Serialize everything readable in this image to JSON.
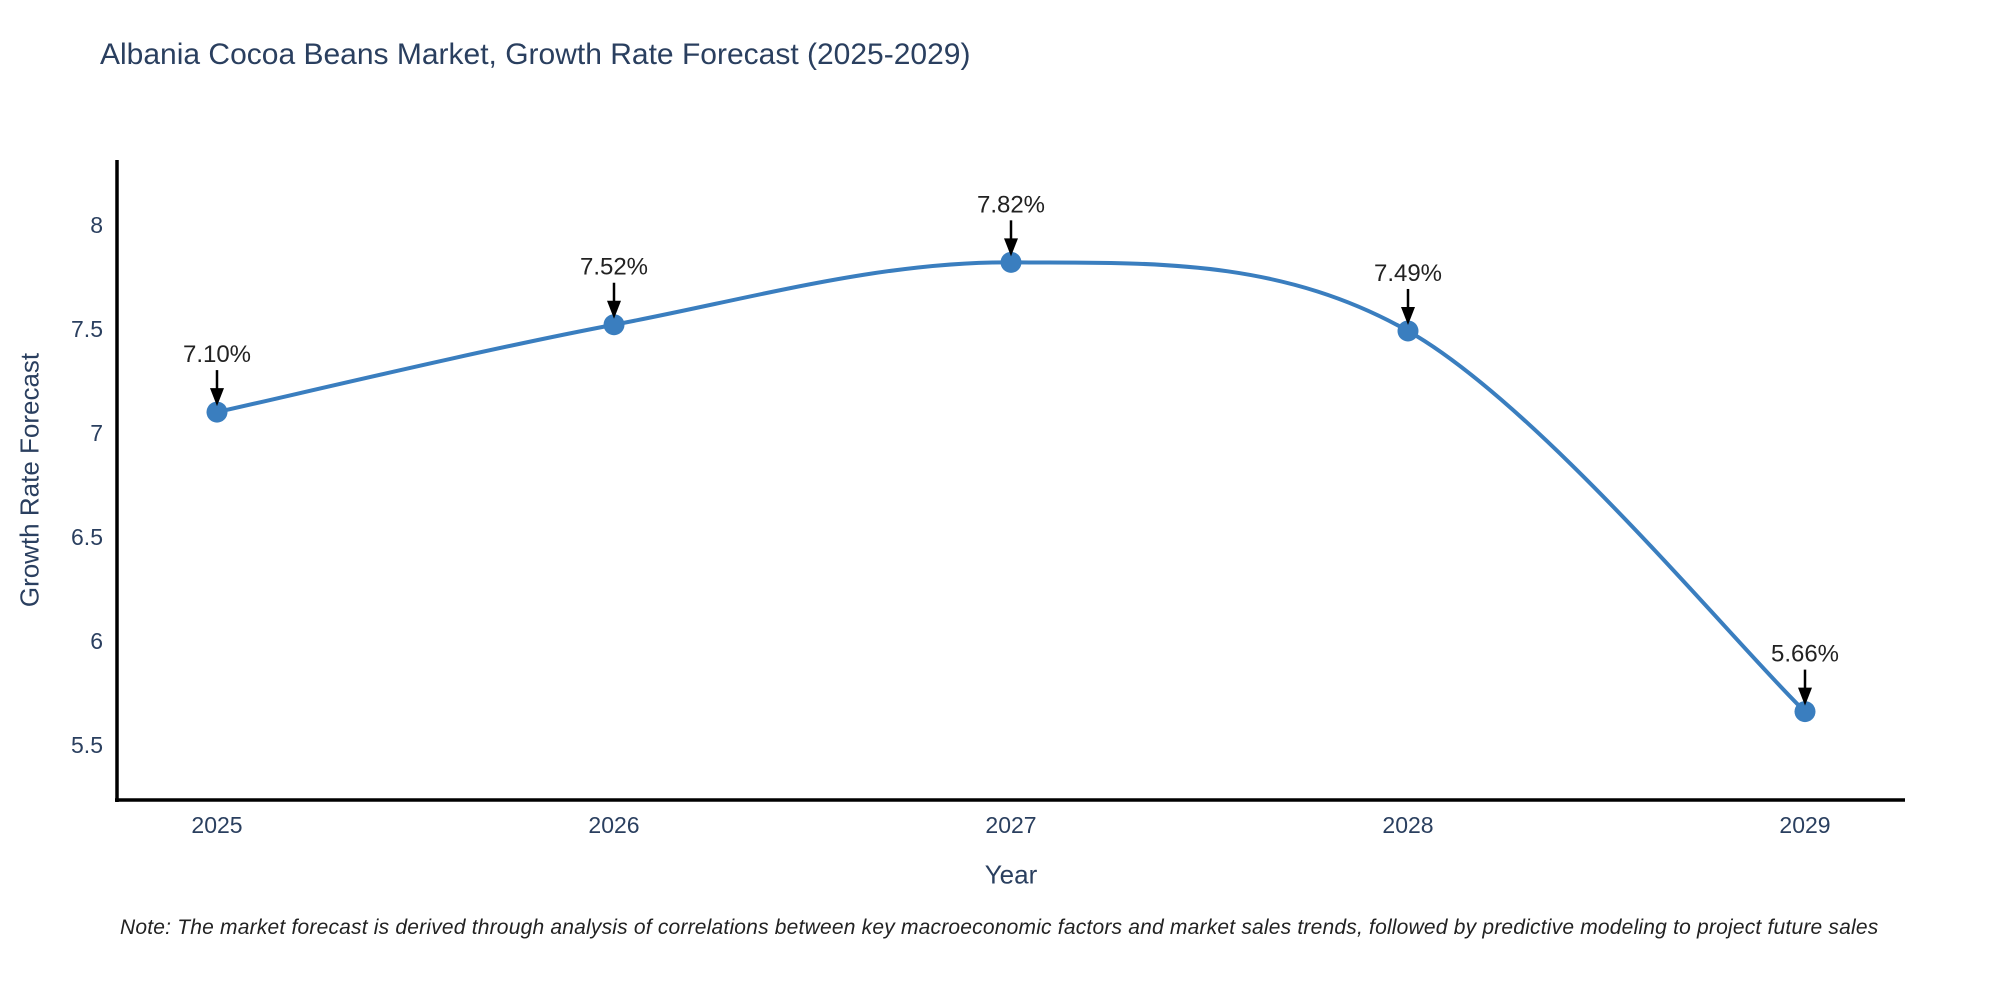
{
  "note": "Note: The market forecast is derived through analysis of correlations between key macroeconomic factors and market sales trends, followed by predictive modeling to project future sales",
  "chart_data": {
    "type": "line",
    "title": "Albania Cocoa Beans Market, Growth Rate Forecast (2025-2029)",
    "xlabel": "Year",
    "ylabel": "Growth Rate Forecast",
    "categories": [
      "2025",
      "2026",
      "2027",
      "2028",
      "2029"
    ],
    "values": [
      7.1,
      7.52,
      7.82,
      7.49,
      5.66
    ],
    "point_labels": [
      "7.10%",
      "7.52%",
      "7.82%",
      "7.49%",
      "5.66%"
    ],
    "yticks": [
      5.5,
      6,
      6.5,
      7,
      7.5,
      8
    ],
    "ylim": [
      5.235,
      8.312
    ],
    "grid": false,
    "legend_position": "none",
    "line_style": "spline",
    "annotation_style": "label-with-down-arrow",
    "colors": {
      "line": "#3a7ebf",
      "marker": "#3a7ebf",
      "axis": "#000000",
      "tick_text": "#2a3f5f",
      "annotation_text": "#222222",
      "arrow": "#000000",
      "title_text": "#2a3f5f",
      "background": "#ffffff"
    }
  }
}
